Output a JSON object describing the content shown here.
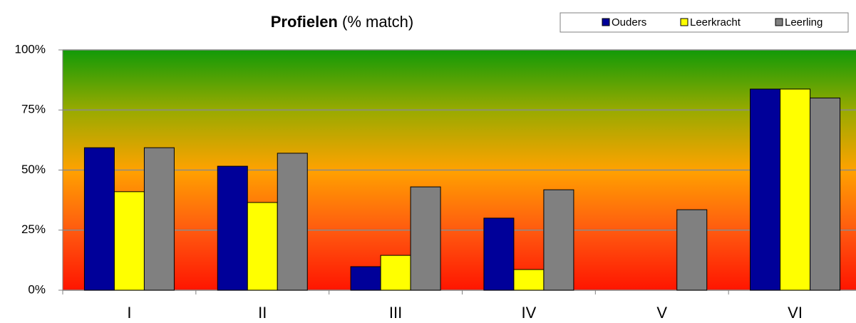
{
  "chart_data": {
    "type": "bar",
    "title": "Profielen",
    "subtitle": "(% match)",
    "categories": [
      "I",
      "II",
      "III",
      "IV",
      "V",
      "VI"
    ],
    "series": [
      {
        "name": "Ouders",
        "color": "#000099",
        "values": [
          59.3,
          51.6,
          9.8,
          30,
          0,
          83.7
        ]
      },
      {
        "name": "Leerkracht",
        "color": "#ffff00",
        "values": [
          41,
          36.5,
          14.5,
          8.6,
          0,
          83.7
        ]
      },
      {
        "name": "Leerling",
        "color": "#808080",
        "values": [
          59.3,
          57,
          43,
          41.8,
          33.5,
          80
        ]
      }
    ],
    "ylim": [
      0,
      100
    ],
    "yticks": [
      {
        "value": 0,
        "label": "0%"
      },
      {
        "value": 25,
        "label": "25%"
      },
      {
        "value": 50,
        "label": "50%"
      },
      {
        "value": 75,
        "label": "75%"
      },
      {
        "value": 100,
        "label": "100%"
      }
    ],
    "grid": true,
    "legend": "top-right"
  }
}
